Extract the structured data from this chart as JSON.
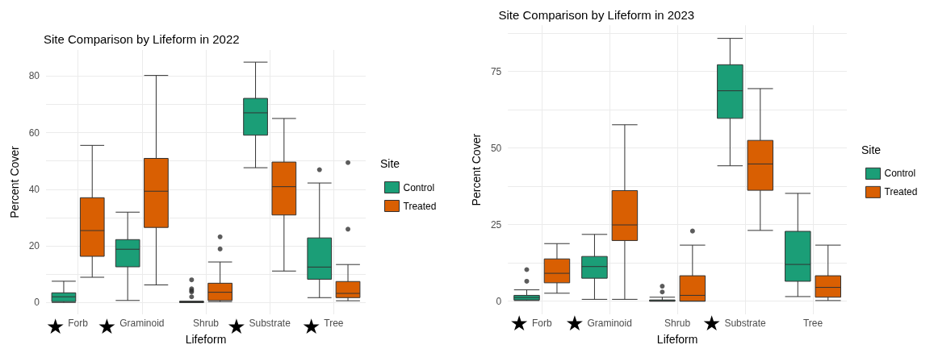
{
  "chart_data": [
    {
      "type": "box",
      "title": "Site Comparison by Lifeform in 2022",
      "xlabel": "Lifeform",
      "ylabel": "Percent Cover",
      "legend_title": "Site",
      "legend": "right",
      "grid": true,
      "categories": [
        "Forb",
        "Graminoid",
        "Shrub",
        "Substrate",
        "Tree"
      ],
      "ylim": [
        -4.2,
        89.2
      ],
      "yticks": [
        0,
        {
          "value": 10,
          "label": null
        },
        20,
        {
          "value": 30,
          "label": null
        },
        40,
        {
          "value": 50,
          "label": null
        },
        60,
        {
          "value": 70,
          "label": null
        },
        80
      ],
      "series": [
        {
          "name": "Control",
          "color": "#1b9e77",
          "boxes": [
            {
              "low": 0,
              "q1": 0.3,
              "median": 2.0,
              "q3": 3.4,
              "high": 7.5
            },
            {
              "low": 0.7,
              "q1": 12.6,
              "median": 18.8,
              "q3": 22.2,
              "high": 31.9
            },
            {
              "low": 0,
              "q1": 0,
              "median": 0.2,
              "q3": 0.4,
              "high": 0.4,
              "outliers": [
                8.0,
                4.8,
                4.2,
                3.7,
                2.0
              ]
            },
            {
              "low": 47.6,
              "q1": 59.1,
              "median": 67.0,
              "q3": 72.1,
              "high": 84.9
            },
            {
              "low": 1.7,
              "q1": 8.2,
              "median": 12.5,
              "q3": 22.8,
              "high": 42.2,
              "outliers": [
                46.9
              ]
            }
          ]
        },
        {
          "name": "Treated",
          "color": "#d95f02",
          "boxes": [
            {
              "low": 8.9,
              "q1": 16.3,
              "median": 25.4,
              "q3": 37.0,
              "high": 55.5
            },
            {
              "low": 6.2,
              "q1": 26.5,
              "median": 39.3,
              "q3": 50.9,
              "high": 80.2
            },
            {
              "low": 0.3,
              "q1": 0.7,
              "median": 3.6,
              "q3": 6.8,
              "high": 14.3,
              "outliers": [
                23.2,
                18.9
              ]
            },
            {
              "low": 11.1,
              "q1": 30.9,
              "median": 40.9,
              "q3": 49.6,
              "high": 65.0
            },
            {
              "low": 0.6,
              "q1": 1.7,
              "median": 3.2,
              "q3": 7.4,
              "high": 13.4,
              "outliers": [
                49.4,
                25.9
              ]
            }
          ]
        }
      ],
      "annotations": [
        "★",
        "★",
        "★",
        "★"
      ]
    },
    {
      "type": "box",
      "title": "Site Comparison by Lifeform in 2023",
      "xlabel": "Lifeform",
      "ylabel": "Percent Cover",
      "legend_title": "Site",
      "legend": "right",
      "grid": true,
      "categories": [
        "Forb",
        "Graminoid",
        "Shrub",
        "Substrate",
        "Tree"
      ],
      "ylim": [
        -4.3,
        90.1
      ],
      "yticks": [
        0,
        {
          "value": 12.5,
          "label": null
        },
        25,
        {
          "value": 37.5,
          "label": null
        },
        50,
        {
          "value": 62.5,
          "label": null
        },
        75,
        {
          "value": 87.5,
          "label": null
        }
      ],
      "series": [
        {
          "name": "Control",
          "color": "#1b9e77",
          "boxes": [
            {
              "low": 0.2,
              "q1": 0.4,
              "median": 1.2,
              "q3": 1.9,
              "high": 3.7,
              "outliers": [
                10.3,
                6.5
              ]
            },
            {
              "low": 0.6,
              "q1": 7.5,
              "median": 11.3,
              "q3": 14.6,
              "high": 21.8
            },
            {
              "low": 0,
              "q1": 0,
              "median": 0.2,
              "q3": 0.4,
              "high": 1.3,
              "outliers": [
                4.9,
                3.0
              ]
            },
            {
              "low": 44.2,
              "q1": 59.7,
              "median": 68.7,
              "q3": 77.2,
              "high": 85.8
            },
            {
              "low": 1.5,
              "q1": 6.5,
              "median": 12.0,
              "q3": 22.8,
              "high": 35.2
            }
          ]
        },
        {
          "name": "Treated",
          "color": "#d95f02",
          "boxes": [
            {
              "low": 2.6,
              "q1": 6.0,
              "median": 9.1,
              "q3": 13.8,
              "high": 18.8
            },
            {
              "low": 0.6,
              "q1": 19.8,
              "median": 24.9,
              "q3": 36.1,
              "high": 57.6
            },
            {
              "low": 0,
              "q1": 0,
              "median": 1.9,
              "q3": 8.3,
              "high": 18.3,
              "outliers": [
                22.9
              ]
            },
            {
              "low": 23.1,
              "q1": 36.2,
              "median": 44.8,
              "q3": 52.5,
              "high": 69.4
            },
            {
              "low": 0.2,
              "q1": 1.3,
              "median": 4.5,
              "q3": 8.3,
              "high": 18.3
            }
          ]
        }
      ],
      "annotations": [
        "★",
        "★",
        "★"
      ]
    }
  ]
}
